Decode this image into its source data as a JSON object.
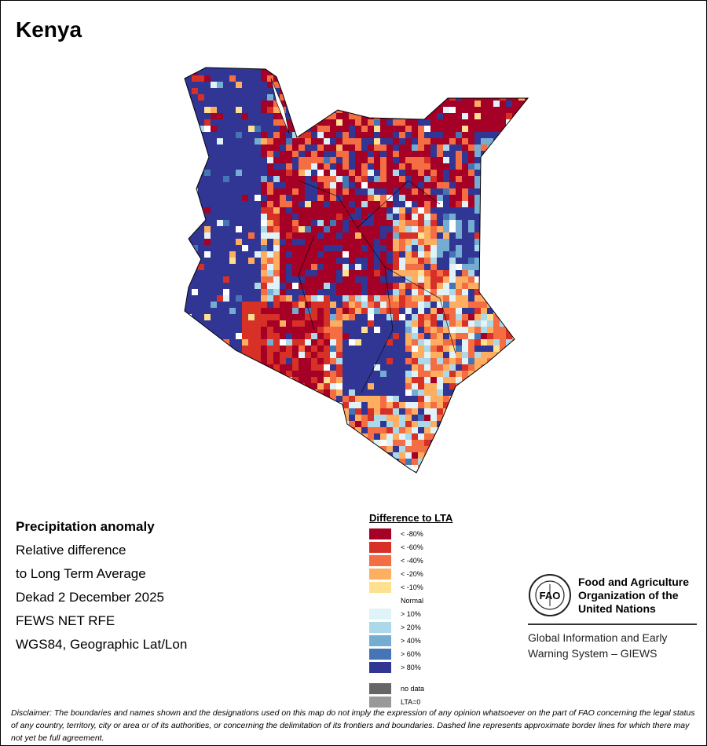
{
  "title": "Kenya",
  "info": {
    "heading": "Precipitation anomaly",
    "line1": "Relative difference",
    "line2": "to Long Term Average",
    "period": "Dekad 2 December 2025",
    "source": "FEWS NET RFE",
    "projection": "WGS84, Geographic Lat/Lon"
  },
  "legend": {
    "title": "Difference to LTA",
    "items": [
      {
        "label": "< -80%",
        "color": "#a50026"
      },
      {
        "label": "< -60%",
        "color": "#d73027"
      },
      {
        "label": "< -40%",
        "color": "#f46d43"
      },
      {
        "label": "< -20%",
        "color": "#fdae61"
      },
      {
        "label": "< -10%",
        "color": "#fee090"
      },
      {
        "label": "Normal",
        "color": "#ffffff"
      },
      {
        "label": "> 10%",
        "color": "#e0f3f8"
      },
      {
        "label": "> 20%",
        "color": "#abd9e9"
      },
      {
        "label": "> 40%",
        "color": "#74add1"
      },
      {
        "label": "> 60%",
        "color": "#4575b4"
      },
      {
        "label": "> 80%",
        "color": "#313695"
      }
    ],
    "extra": [
      {
        "label": "no data",
        "color": "#666666"
      },
      {
        "label": "LTA=0",
        "color": "#999999"
      }
    ]
  },
  "fao": {
    "logo_text": "FAO FIAT PANIS",
    "name1": "Food and Agriculture",
    "name2": "Organization of the",
    "name3": "United Nations",
    "sub1": "Global Information and Early",
    "sub2": "Warning System – GIEWS"
  },
  "disclaimer": "Disclaimer: The boundaries and names shown and the designations used on this map do not imply the expression of any opinion whatsoever on the part of FAO concerning the legal status of any country, territory, city or area or of its authorities, or concerning the delimitation of its frontiers and boundaries. Dashed line represents approximate border lines for which there may not yet be full agreement."
}
